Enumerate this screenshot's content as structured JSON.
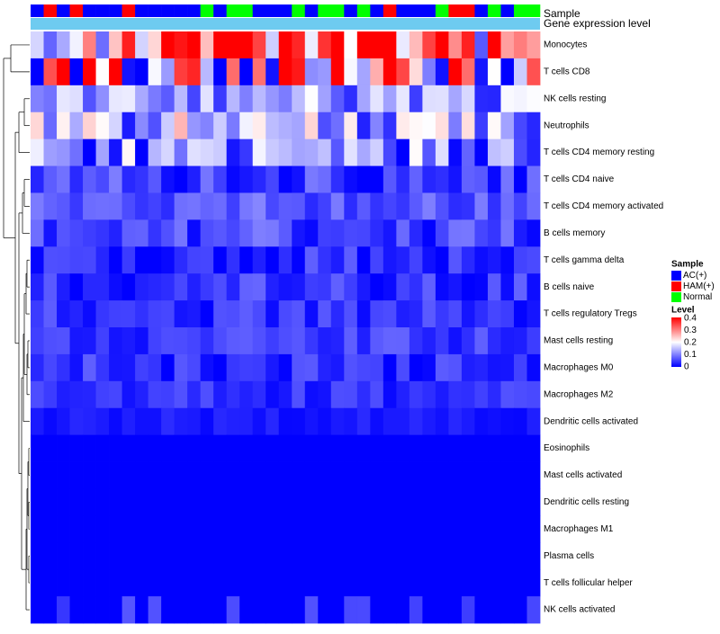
{
  "chart_data": {
    "type": "heatmap",
    "title": "",
    "annotation_rows": [
      "Sample",
      "Gene expression level"
    ],
    "rows": [
      "Monocytes",
      "T cells CD8",
      "NK cells resting",
      "Neutrophils",
      "T cells CD4 memory resting",
      "T cells CD4 naive",
      "T cells CD4 memory activated",
      "B cells memory",
      "T cells gamma delta",
      "B cells naive",
      "T cells regulatory  Tregs",
      "Mast cells resting",
      "Macrophages M0",
      "Macrophages M2",
      "Dendritic cells activated",
      "Eosinophils",
      "Mast cells activated",
      "Dendritic cells resting",
      "Macrophages M1",
      "Plasma cells",
      "T cells follicular helper",
      "NK cells activated"
    ],
    "sample_groups": [
      "A",
      "H",
      "A",
      "H",
      "A",
      "A",
      "A",
      "H",
      "A",
      "A",
      "A",
      "A",
      "A",
      "N",
      "A",
      "N",
      "N",
      "A",
      "A",
      "A",
      "N",
      "A",
      "N",
      "N",
      "A",
      "N",
      "A",
      "H",
      "A",
      "A",
      "A",
      "N",
      "H",
      "H",
      "A",
      "N",
      "A",
      "N",
      "N"
    ],
    "colors": {
      "AC(+)": "#0000ff",
      "HAM(+)": "#ff0000",
      "Normal": "#00ff00",
      "gene_expression_band": "#6ecbf0",
      "scale_low": "#0000ff",
      "scale_mid": "#ffffff",
      "scale_high": "#ff0000"
    },
    "legend": {
      "sample_title": "Sample",
      "sample_entries": [
        "AC(+)",
        "HAM(+)",
        "Normal"
      ],
      "level_title": "Level",
      "level_ticks": [
        "0.4",
        "0.3",
        "0.2",
        "0.1",
        "0"
      ],
      "placement": "right"
    },
    "value_range": [
      0,
      0.4
    ]
  }
}
